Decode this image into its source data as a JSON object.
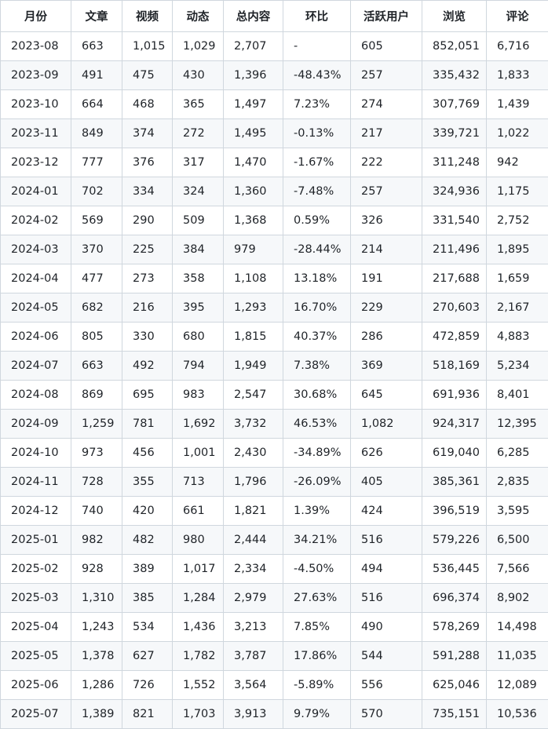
{
  "table": {
    "headers": [
      "月份",
      "文章",
      "视频",
      "动态",
      "总内容",
      "环比",
      "活跃用户",
      "浏览",
      "评论"
    ],
    "rows": [
      [
        "2023-08",
        "663",
        "1,015",
        "1,029",
        "2,707",
        "-",
        "605",
        "852,051",
        "6,716"
      ],
      [
        "2023-09",
        "491",
        "475",
        "430",
        "1,396",
        "-48.43%",
        "257",
        "335,432",
        "1,833"
      ],
      [
        "2023-10",
        "664",
        "468",
        "365",
        "1,497",
        "7.23%",
        "274",
        "307,769",
        "1,439"
      ],
      [
        "2023-11",
        "849",
        "374",
        "272",
        "1,495",
        "-0.13%",
        "217",
        "339,721",
        "1,022"
      ],
      [
        "2023-12",
        "777",
        "376",
        "317",
        "1,470",
        "-1.67%",
        "222",
        "311,248",
        "942"
      ],
      [
        "2024-01",
        "702",
        "334",
        "324",
        "1,360",
        "-7.48%",
        "257",
        "324,936",
        "1,175"
      ],
      [
        "2024-02",
        "569",
        "290",
        "509",
        "1,368",
        "0.59%",
        "326",
        "331,540",
        "2,752"
      ],
      [
        "2024-03",
        "370",
        "225",
        "384",
        "979",
        "-28.44%",
        "214",
        "211,496",
        "1,895"
      ],
      [
        "2024-04",
        "477",
        "273",
        "358",
        "1,108",
        "13.18%",
        "191",
        "217,688",
        "1,659"
      ],
      [
        "2024-05",
        "682",
        "216",
        "395",
        "1,293",
        "16.70%",
        "229",
        "270,603",
        "2,167"
      ],
      [
        "2024-06",
        "805",
        "330",
        "680",
        "1,815",
        "40.37%",
        "286",
        "472,859",
        "4,883"
      ],
      [
        "2024-07",
        "663",
        "492",
        "794",
        "1,949",
        "7.38%",
        "369",
        "518,169",
        "5,234"
      ],
      [
        "2024-08",
        "869",
        "695",
        "983",
        "2,547",
        "30.68%",
        "645",
        "691,936",
        "8,401"
      ],
      [
        "2024-09",
        "1,259",
        "781",
        "1,692",
        "3,732",
        "46.53%",
        "1,082",
        "924,317",
        "12,395"
      ],
      [
        "2024-10",
        "973",
        "456",
        "1,001",
        "2,430",
        "-34.89%",
        "626",
        "619,040",
        "6,285"
      ],
      [
        "2024-11",
        "728",
        "355",
        "713",
        "1,796",
        "-26.09%",
        "405",
        "385,361",
        "2,835"
      ],
      [
        "2024-12",
        "740",
        "420",
        "661",
        "1,821",
        "1.39%",
        "424",
        "396,519",
        "3,595"
      ],
      [
        "2025-01",
        "982",
        "482",
        "980",
        "2,444",
        "34.21%",
        "516",
        "579,226",
        "6,500"
      ],
      [
        "2025-02",
        "928",
        "389",
        "1,017",
        "2,334",
        "-4.50%",
        "494",
        "536,445",
        "7,566"
      ],
      [
        "2025-03",
        "1,310",
        "385",
        "1,284",
        "2,979",
        "27.63%",
        "516",
        "696,374",
        "8,902"
      ],
      [
        "2025-04",
        "1,243",
        "534",
        "1,436",
        "3,213",
        "7.85%",
        "490",
        "578,269",
        "14,498"
      ],
      [
        "2025-05",
        "1,378",
        "627",
        "1,782",
        "3,787",
        "17.86%",
        "544",
        "591,288",
        "11,035"
      ],
      [
        "2025-06",
        "1,286",
        "726",
        "1,552",
        "3,564",
        "-5.89%",
        "556",
        "625,046",
        "12,089"
      ],
      [
        "2025-07",
        "1,389",
        "821",
        "1,703",
        "3,913",
        "9.79%",
        "570",
        "735,151",
        "10,536"
      ]
    ]
  }
}
